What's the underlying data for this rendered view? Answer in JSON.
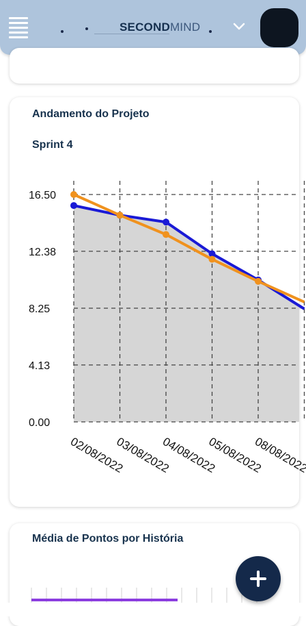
{
  "header": {
    "logo_bold": "SECOND",
    "logo_light": "MIND",
    "menu_icon": "hamburger-menu-icon",
    "dropdown_icon": "chevron-down-icon"
  },
  "project_card": {
    "title": "Andamento do Projeto",
    "sprint_label": "Sprint 4"
  },
  "chart_data": {
    "type": "line",
    "x": [
      "02/08/2022",
      "03/08/2022",
      "04/08/2022",
      "05/08/2022",
      "08/08/2022",
      ""
    ],
    "y_ticks": [
      "0.00",
      "4.13",
      "8.25",
      "12.38",
      "16.50"
    ],
    "ylim": [
      0,
      16.5
    ],
    "grid": true,
    "series": [
      {
        "values": [
          15.7,
          15.0,
          14.5,
          12.2,
          10.3,
          8.2
        ],
        "color": "#1a1ad6",
        "fill": "#d6d6d6"
      },
      {
        "values": [
          16.5,
          15.0,
          13.6,
          11.8,
          10.2,
          8.7
        ],
        "color": "#f0921e"
      }
    ]
  },
  "second_card": {
    "title": "Média de Pontos por História",
    "bar_color": "#8b3ddf"
  },
  "fab": {
    "label": "+"
  }
}
